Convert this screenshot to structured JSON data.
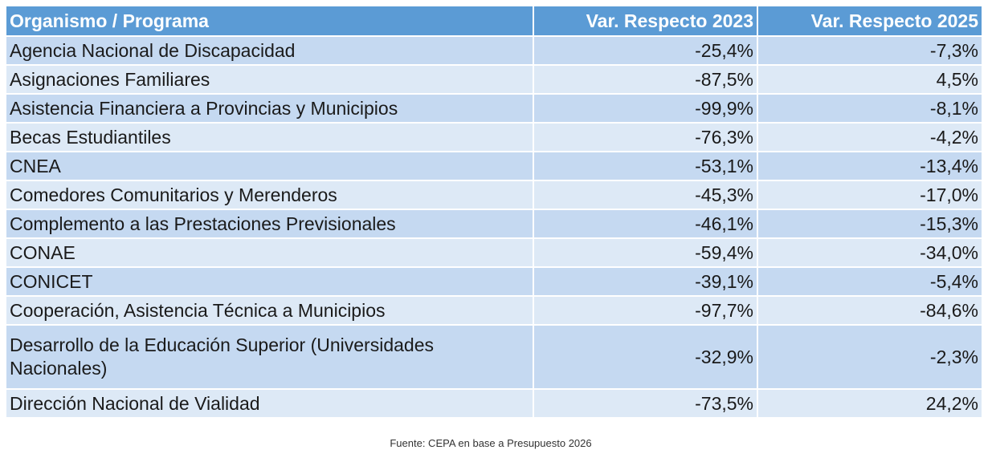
{
  "table": {
    "headers": [
      "Organismo / Programa",
      "Var. Respecto 2023",
      "Var. Respecto 2025"
    ],
    "rows": [
      [
        "Agencia Nacional de Discapacidad",
        "-25,4%",
        "-7,3%"
      ],
      [
        "Asignaciones Familiares",
        "-87,5%",
        "4,5%"
      ],
      [
        "Asistencia Financiera a Provincias y Municipios",
        "-99,9%",
        "-8,1%"
      ],
      [
        "Becas Estudiantiles",
        "-76,3%",
        "-4,2%"
      ],
      [
        "CNEA",
        "-53,1%",
        "-13,4%"
      ],
      [
        "Comedores Comunitarios y Merenderos",
        "-45,3%",
        "-17,0%"
      ],
      [
        "Complemento a las Prestaciones Previsionales",
        "-46,1%",
        "-15,3%"
      ],
      [
        "CONAE",
        "-59,4%",
        "-34,0%"
      ],
      [
        "CONICET",
        "-39,1%",
        "-5,4%"
      ],
      [
        "Cooperación, Asistencia Técnica a Municipios",
        "-97,7%",
        "-84,6%"
      ],
      [
        "Desarrollo de la Educación Superior (Universidades Nacionales)",
        "-32,9%",
        "-2,3%"
      ],
      [
        "Dirección Nacional de Vialidad",
        "-73,5%",
        "24,2%"
      ]
    ]
  },
  "source": "Fuente: CEPA en base a Presupuesto 2026",
  "colors": {
    "header_bg": "#5b9bd5",
    "row_odd": "#c5d9f1",
    "row_even": "#dde9f6"
  }
}
